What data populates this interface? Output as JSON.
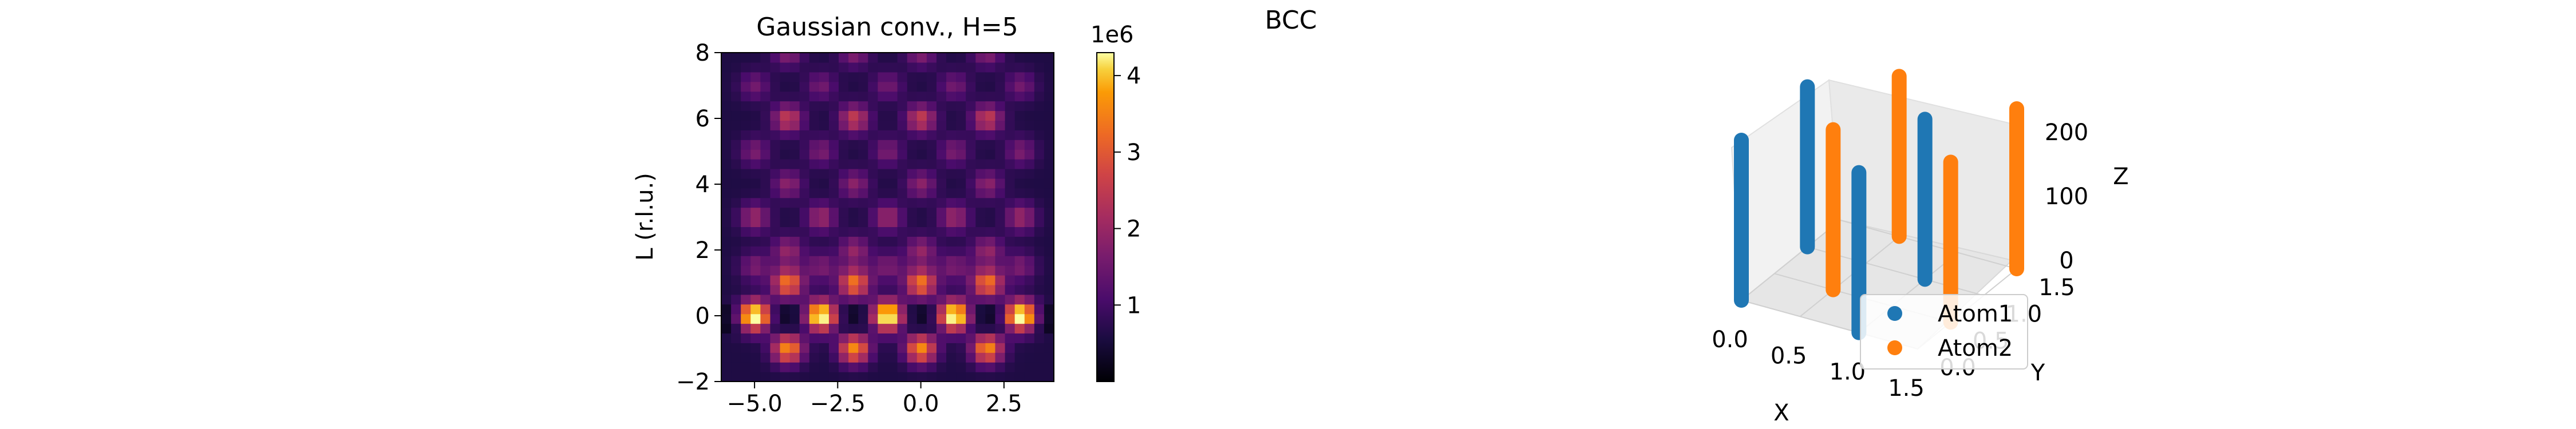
{
  "figure": {
    "suptitle": "BCC"
  },
  "chart_data": [
    {
      "type": "heatmap",
      "title": "Gaussian conv., H=5",
      "xlabel": "",
      "ylabel": "L (r.l.u.)",
      "xlim": [
        -6,
        4
      ],
      "ylim": [
        -2,
        8
      ],
      "xticks": [
        -5.0,
        -2.5,
        0.0,
        2.5
      ],
      "xtick_labels": [
        "−5.0",
        "−2.5",
        "0.0",
        "2.5"
      ],
      "yticks": [
        -2,
        0,
        2,
        4,
        6,
        8
      ],
      "ytick_labels": [
        "−2",
        "0",
        "2",
        "4",
        "6",
        "8"
      ],
      "colormap": "inferno",
      "colorbar": {
        "vmin": 0,
        "vmax": 4.3,
        "ticks": [
          1,
          2,
          3,
          4
        ],
        "tick_labels": [
          "1",
          "2",
          "3",
          "4"
        ],
        "offset_label": "1e6"
      },
      "grid": false,
      "peaks": {
        "x_positions": [
          -5,
          -4,
          -3,
          -2,
          -1,
          0,
          1,
          2,
          3
        ],
        "rows": [
          {
            "L": -1,
            "x_positions": [
              -4,
              -2,
              0,
              2
            ],
            "intensity": 0.62
          },
          {
            "L": 0,
            "x_positions": [
              -5,
              -3,
              -1,
              1,
              3
            ],
            "intensity": 1.0
          },
          {
            "L": 1,
            "x_positions": [
              -4,
              -2,
              0,
              2
            ],
            "intensity": 0.58
          },
          {
            "L": 1.5,
            "x_positions": [
              -5,
              -3,
              -1,
              1,
              3
            ],
            "intensity": 0.22
          },
          {
            "L": 3,
            "x_positions": [
              -5,
              -3,
              -1,
              1,
              3
            ],
            "intensity": 0.3
          },
          {
            "L": 2,
            "x_positions": [
              -4,
              -2,
              0,
              2
            ],
            "intensity": 0.28
          },
          {
            "L": 4,
            "x_positions": [
              -4,
              -2,
              0,
              2
            ],
            "intensity": 0.26
          },
          {
            "L": 5,
            "x_positions": [
              -5,
              -3,
              -1,
              1,
              3
            ],
            "intensity": 0.22
          },
          {
            "L": 6,
            "x_positions": [
              -4,
              -2,
              0,
              2
            ],
            "intensity": 0.4
          },
          {
            "L": 7,
            "x_positions": [
              -5,
              -3,
              -1,
              1,
              3
            ],
            "intensity": 0.2
          },
          {
            "L": 8,
            "x_positions": [
              -4,
              -2,
              0,
              2
            ],
            "intensity": 0.24
          }
        ]
      }
    },
    {
      "type": "scatter",
      "projection": "3d",
      "title": "",
      "xlabel": "X",
      "ylabel": "Y",
      "zlabel": "Z",
      "xlim": [
        0,
        1.5
      ],
      "ylim": [
        0,
        1.5
      ],
      "zlim": [
        0,
        250
      ],
      "xticks": [
        0.0,
        0.5,
        1.0,
        1.5
      ],
      "xtick_labels": [
        "0.0",
        "0.5",
        "1.0",
        "1.5"
      ],
      "yticks": [
        0.0,
        0.5,
        1.0,
        1.5
      ],
      "ytick_labels": [
        "0.0",
        "0.5",
        "1.0",
        "1.5"
      ],
      "zticks": [
        0,
        100,
        200
      ],
      "ztick_labels": [
        "0",
        "100",
        "200"
      ],
      "legend": {
        "placement": "lower right"
      },
      "series": [
        {
          "name": "Atom1",
          "color": "#1f77b4",
          "columns": [
            {
              "x": 0,
              "y": 0,
              "z": [
                0,
                250
              ]
            },
            {
              "x": 1,
              "y": 0,
              "z": [
                0,
                250
              ]
            },
            {
              "x": 0,
              "y": 1,
              "z": [
                0,
                250
              ]
            },
            {
              "x": 1,
              "y": 1,
              "z": [
                0,
                250
              ]
            }
          ]
        },
        {
          "name": "Atom2",
          "color": "#ff7f0e",
          "columns": [
            {
              "x": 0.5,
              "y": 0.5,
              "z": [
                0,
                250
              ]
            },
            {
              "x": 1.5,
              "y": 0.5,
              "z": [
                0,
                250
              ]
            },
            {
              "x": 0.5,
              "y": 1.5,
              "z": [
                0,
                250
              ]
            },
            {
              "x": 1.5,
              "y": 1.5,
              "z": [
                0,
                250
              ]
            }
          ]
        }
      ]
    }
  ]
}
